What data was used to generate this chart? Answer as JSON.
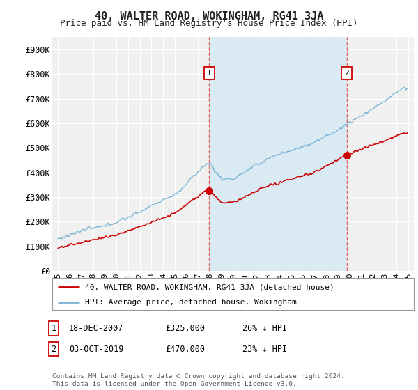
{
  "title": "40, WALTER ROAD, WOKINGHAM, RG41 3JA",
  "subtitle": "Price paid vs. HM Land Registry's House Price Index (HPI)",
  "title_fontsize": 11,
  "subtitle_fontsize": 9,
  "ylabel_ticks": [
    "£0",
    "£100K",
    "£200K",
    "£300K",
    "£400K",
    "£500K",
    "£600K",
    "£700K",
    "£800K",
    "£900K"
  ],
  "ytick_values": [
    0,
    100000,
    200000,
    300000,
    400000,
    500000,
    600000,
    700000,
    800000,
    900000
  ],
  "ylim": [
    0,
    950000
  ],
  "background_color": "#ffffff",
  "plot_bg_color": "#f0f0f0",
  "grid_color": "#ffffff",
  "hpi_color": "#7ab3d4",
  "hpi_fill_color": "#d0e8f5",
  "price_color": "#cc0000",
  "marker1_date": 2007.96,
  "marker1_price": 325000,
  "marker2_date": 2019.75,
  "marker2_price": 470000,
  "vline_color": "#e06060",
  "annotation_box_color": "#cc0000",
  "footer_text": "Contains HM Land Registry data © Crown copyright and database right 2024.\nThis data is licensed under the Open Government Licence v3.0.",
  "legend_label_red": "40, WALTER ROAD, WOKINGHAM, RG41 3JA (detached house)",
  "legend_label_blue": "HPI: Average price, detached house, Wokingham",
  "table_rows": [
    [
      "1",
      "18-DEC-2007",
      "£325,000",
      "26% ↓ HPI"
    ],
    [
      "2",
      "03-OCT-2019",
      "£470,000",
      "23% ↓ HPI"
    ]
  ]
}
